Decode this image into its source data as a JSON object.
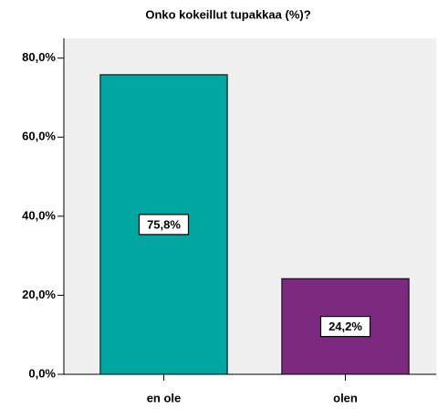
{
  "chart_data": {
    "type": "bar",
    "title": "Onko kokeillut tupakkaa (%)?",
    "categories": [
      "en ole",
      "olen"
    ],
    "series": [
      {
        "name": null,
        "colors": [
          "#00a6a0",
          "#7b2a7f"
        ],
        "values": [
          75.8,
          24.2
        ],
        "value_labels": [
          "75,8%",
          "24,2%"
        ]
      }
    ],
    "ylim": [
      0,
      85
    ],
    "yticks": [
      {
        "value": 0,
        "label": "0,0%"
      },
      {
        "value": 20,
        "label": "20,0%"
      },
      {
        "value": 40,
        "label": "40,0%"
      },
      {
        "value": 60,
        "label": "60,0%"
      },
      {
        "value": 80,
        "label": "80,0%"
      }
    ],
    "background": "#f0f0f0"
  }
}
